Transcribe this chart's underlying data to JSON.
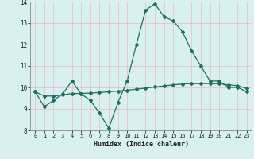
{
  "xlabel": "Humidex (Indice chaleur)",
  "ylabel": "",
  "background_color": "#d8f0f0",
  "grid_color": "#e8c8c8",
  "line_color": "#1a7060",
  "x_values": [
    0,
    1,
    2,
    3,
    4,
    5,
    6,
    7,
    8,
    9,
    10,
    11,
    12,
    13,
    14,
    15,
    16,
    17,
    18,
    19,
    20,
    21,
    22,
    23
  ],
  "y_line1": [
    9.8,
    9.1,
    9.4,
    9.7,
    10.3,
    9.7,
    9.4,
    8.8,
    8.1,
    9.3,
    10.3,
    12.0,
    13.6,
    13.9,
    13.3,
    13.1,
    12.6,
    11.7,
    11.0,
    10.3,
    10.3,
    10.0,
    10.0,
    9.8
  ],
  "y_line2": [
    9.8,
    9.6,
    9.6,
    9.65,
    9.72,
    9.72,
    9.74,
    9.76,
    9.8,
    9.83,
    9.87,
    9.92,
    9.97,
    10.02,
    10.07,
    10.12,
    10.16,
    10.18,
    10.18,
    10.18,
    10.17,
    10.12,
    10.08,
    9.95
  ],
  "ylim": [
    8.0,
    14.0
  ],
  "xlim": [
    -0.5,
    23.5
  ],
  "yticks": [
    8,
    9,
    10,
    11,
    12,
    13,
    14
  ],
  "xticks": [
    0,
    1,
    2,
    3,
    4,
    5,
    6,
    7,
    8,
    9,
    10,
    11,
    12,
    13,
    14,
    15,
    16,
    17,
    18,
    19,
    20,
    21,
    22,
    23
  ]
}
